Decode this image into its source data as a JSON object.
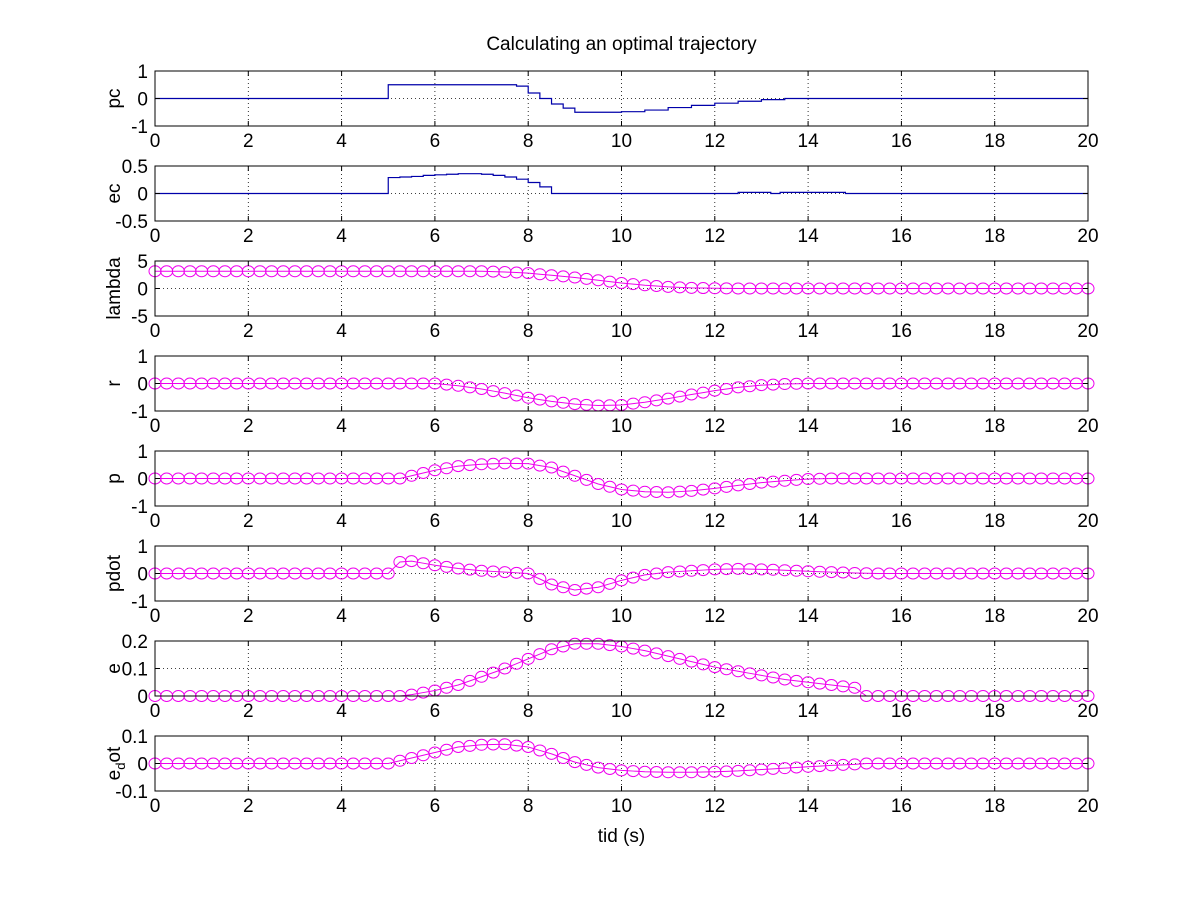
{
  "title": "Calculating an optimal trajectory",
  "xlabel": "tid (s)",
  "chart_data": [
    {
      "type": "line",
      "ylabel": "pc",
      "xlim": [
        0,
        20
      ],
      "ylim": [
        -1,
        1
      ],
      "xticks": [
        "0",
        "2",
        "4",
        "6",
        "8",
        "10",
        "12",
        "14",
        "16",
        "18",
        "20"
      ],
      "yticks": [
        {
          "v": -1,
          "label": "-1"
        },
        {
          "v": 0,
          "label": "0"
        },
        {
          "v": 1,
          "label": "1"
        }
      ],
      "grid": true,
      "color": "#0000aa",
      "style": "stairs",
      "series": [
        {
          "x": [
            0,
            5,
            5,
            6,
            6.5,
            7,
            7.5,
            7.75,
            8,
            8.25,
            8.5,
            8.75,
            9,
            9.5,
            10,
            10.5,
            11,
            11.5,
            12,
            12.5,
            13,
            13.5,
            20
          ],
          "y": [
            0,
            0,
            0.5,
            0.5,
            0.5,
            0.5,
            0.5,
            0.45,
            0.2,
            0,
            -0.2,
            -0.35,
            -0.5,
            -0.5,
            -0.48,
            -0.42,
            -0.33,
            -0.25,
            -0.17,
            -0.1,
            -0.04,
            0,
            0
          ]
        }
      ]
    },
    {
      "type": "line",
      "ylabel": "ec",
      "xlim": [
        0,
        20
      ],
      "ylim": [
        -0.5,
        0.5
      ],
      "xticks": [
        "0",
        "2",
        "4",
        "6",
        "8",
        "10",
        "12",
        "14",
        "16",
        "18",
        "20"
      ],
      "yticks": [
        {
          "v": -0.5,
          "label": "-0.5"
        },
        {
          "v": 0,
          "label": "0"
        },
        {
          "v": 0.5,
          "label": "0.5"
        }
      ],
      "grid": true,
      "color": "#0000aa",
      "style": "stairs",
      "series": [
        {
          "x": [
            0,
            5,
            5.25,
            5.5,
            5.75,
            6,
            6.25,
            6.5,
            6.75,
            7,
            7.25,
            7.5,
            7.75,
            8,
            8.25,
            8.5,
            12.5,
            13.2,
            13.4,
            14.8,
            20
          ],
          "y": [
            0,
            0.29,
            0.3,
            0.31,
            0.33,
            0.34,
            0.35,
            0.36,
            0.36,
            0.35,
            0.33,
            0.3,
            0.26,
            0.2,
            0.12,
            0,
            0.02,
            0,
            0.02,
            0,
            0
          ]
        }
      ]
    },
    {
      "type": "line",
      "ylabel": "lambda",
      "xlim": [
        0,
        20
      ],
      "ylim": [
        -5,
        5
      ],
      "xticks": [
        "0",
        "2",
        "4",
        "6",
        "8",
        "10",
        "12",
        "14",
        "16",
        "18",
        "20"
      ],
      "yticks": [
        {
          "v": -5,
          "label": "-5"
        },
        {
          "v": 0,
          "label": "0"
        },
        {
          "v": 5,
          "label": "5"
        }
      ],
      "grid": true,
      "color": "#ee00ee",
      "style": "markers",
      "series": [
        {
          "x": [
            0,
            7,
            7.5,
            8,
            8.5,
            9,
            9.5,
            10,
            10.5,
            11,
            11.5,
            12,
            12.5,
            13,
            20
          ],
          "y": [
            3.14,
            3.14,
            3.0,
            2.8,
            2.4,
            2.0,
            1.5,
            1.0,
            0.6,
            0.3,
            0.12,
            0.04,
            0.01,
            0,
            0
          ]
        }
      ]
    },
    {
      "type": "line",
      "ylabel": "r",
      "xlim": [
        0,
        20
      ],
      "ylim": [
        -1,
        1
      ],
      "xticks": [
        "0",
        "2",
        "4",
        "6",
        "8",
        "10",
        "12",
        "14",
        "16",
        "18",
        "20"
      ],
      "yticks": [
        {
          "v": -1,
          "label": "-1"
        },
        {
          "v": 0,
          "label": "0"
        },
        {
          "v": 1,
          "label": "1"
        }
      ],
      "grid": true,
      "color": "#ee00ee",
      "style": "markers",
      "series": [
        {
          "x": [
            0,
            6,
            6.5,
            7,
            7.5,
            8,
            8.5,
            9,
            9.5,
            10,
            10.5,
            11,
            11.5,
            12,
            12.5,
            13,
            13.5,
            14,
            20
          ],
          "y": [
            0,
            0,
            -0.08,
            -0.2,
            -0.35,
            -0.52,
            -0.65,
            -0.75,
            -0.8,
            -0.78,
            -0.68,
            -0.55,
            -0.4,
            -0.26,
            -0.14,
            -0.06,
            -0.02,
            0,
            0
          ]
        }
      ]
    },
    {
      "type": "line",
      "ylabel": "p",
      "xlim": [
        0,
        20
      ],
      "ylim": [
        -1,
        1
      ],
      "xticks": [
        "0",
        "2",
        "4",
        "6",
        "8",
        "10",
        "12",
        "14",
        "16",
        "18",
        "20"
      ],
      "yticks": [
        {
          "v": -1,
          "label": "-1"
        },
        {
          "v": 0,
          "label": "0"
        },
        {
          "v": 1,
          "label": "1"
        }
      ],
      "grid": true,
      "color": "#ee00ee",
      "style": "markers",
      "series": [
        {
          "x": [
            0,
            5.25,
            5.5,
            6,
            6.5,
            7,
            7.5,
            8,
            8.5,
            9,
            9.5,
            10,
            10.5,
            11,
            11.5,
            12,
            12.5,
            13,
            13.5,
            14,
            14.5,
            20
          ],
          "y": [
            0,
            0,
            0.1,
            0.3,
            0.45,
            0.52,
            0.55,
            0.54,
            0.4,
            0.1,
            -0.2,
            -0.4,
            -0.48,
            -0.5,
            -0.45,
            -0.36,
            -0.25,
            -0.15,
            -0.08,
            -0.02,
            0,
            0
          ]
        }
      ]
    },
    {
      "type": "line",
      "ylabel": "pdot",
      "xlim": [
        0,
        20
      ],
      "ylim": [
        -1,
        1
      ],
      "xticks": [
        "0",
        "2",
        "4",
        "6",
        "8",
        "10",
        "12",
        "14",
        "16",
        "18",
        "20"
      ],
      "yticks": [
        {
          "v": -1,
          "label": "-1"
        },
        {
          "v": 0,
          "label": "0"
        },
        {
          "v": 1,
          "label": "1"
        }
      ],
      "grid": true,
      "color": "#ee00ee",
      "style": "markers",
      "series": [
        {
          "x": [
            0,
            5,
            5.25,
            5.5,
            6,
            6.5,
            7,
            7.5,
            8,
            8.25,
            8.5,
            9,
            9.5,
            10,
            10.5,
            11,
            11.5,
            12,
            12.5,
            13,
            13.5,
            14,
            14.5,
            15,
            15.5,
            20
          ],
          "y": [
            0,
            0,
            0.42,
            0.45,
            0.3,
            0.18,
            0.1,
            0.05,
            0,
            -0.2,
            -0.4,
            -0.6,
            -0.5,
            -0.25,
            -0.05,
            0.05,
            0.1,
            0.15,
            0.17,
            0.15,
            0.12,
            0.08,
            0.05,
            0.02,
            0,
            0
          ]
        }
      ]
    },
    {
      "type": "line",
      "ylabel": "e",
      "xlim": [
        0,
        20
      ],
      "ylim": [
        0,
        0.2
      ],
      "xticks": [
        "0",
        "2",
        "4",
        "6",
        "8",
        "10",
        "12",
        "14",
        "16",
        "18",
        "20"
      ],
      "yticks": [
        {
          "v": 0,
          "label": "0"
        },
        {
          "v": 0.1,
          "label": "0.1"
        },
        {
          "v": 0.2,
          "label": "0.2"
        }
      ],
      "grid": true,
      "color": "#ee00ee",
      "style": "markers",
      "series": [
        {
          "x": [
            0,
            5.25,
            5.5,
            6,
            6.5,
            7,
            7.5,
            8,
            8.5,
            9,
            9.5,
            10,
            10.5,
            11,
            11.5,
            12,
            12.5,
            13,
            13.5,
            14,
            14.5,
            15,
            15.25,
            20
          ],
          "y": [
            0,
            0,
            0.005,
            0.02,
            0.04,
            0.07,
            0.1,
            0.135,
            0.17,
            0.19,
            0.19,
            0.18,
            0.165,
            0.145,
            0.125,
            0.105,
            0.09,
            0.075,
            0.06,
            0.05,
            0.04,
            0.03,
            0,
            0
          ]
        }
      ]
    },
    {
      "type": "line",
      "ylabel": "e",
      "ylabel_sub": "d",
      "ylabel_tail": "ot",
      "xlim": [
        0,
        20
      ],
      "ylim": [
        -0.1,
        0.1
      ],
      "xticks": [
        "0",
        "2",
        "4",
        "6",
        "8",
        "10",
        "12",
        "14",
        "16",
        "18",
        "20"
      ],
      "yticks": [
        {
          "v": -0.1,
          "label": "-0.1"
        },
        {
          "v": 0,
          "label": "0"
        },
        {
          "v": 0.1,
          "label": "0.1"
        }
      ],
      "grid": true,
      "color": "#ee00ee",
      "style": "markers",
      "series": [
        {
          "x": [
            0,
            5,
            5.5,
            6,
            6.5,
            7,
            7.5,
            8,
            8.5,
            9,
            9.5,
            10,
            10.5,
            11,
            11.5,
            12,
            12.5,
            13,
            13.5,
            14,
            14.5,
            15,
            15.25,
            20
          ],
          "y": [
            0,
            0,
            0.02,
            0.04,
            0.06,
            0.068,
            0.07,
            0.06,
            0.035,
            0.005,
            -0.015,
            -0.025,
            -0.03,
            -0.032,
            -0.032,
            -0.03,
            -0.027,
            -0.022,
            -0.017,
            -0.012,
            -0.007,
            -0.003,
            0,
            0
          ]
        }
      ]
    }
  ]
}
